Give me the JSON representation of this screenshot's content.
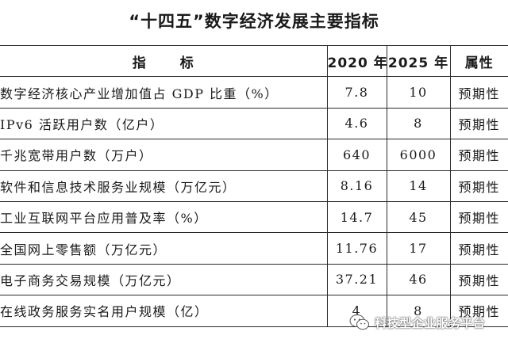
{
  "document": {
    "title": "“十四五”数字经济发展主要指标"
  },
  "table": {
    "headers": {
      "indicator_a": "指",
      "indicator_b": "标",
      "y2020": "2020 年",
      "y2025": "2025 年",
      "attribute": "属性"
    },
    "rows": [
      {
        "name": "数字经济核心产业增加值占 GDP 比重（%）",
        "v2020": "7.8",
        "v2025": "10",
        "attr": "预期性"
      },
      {
        "name": "IPv6 活跃用户数（亿户）",
        "v2020": "4.6",
        "v2025": "8",
        "attr": "预期性"
      },
      {
        "name": "千兆宽带用户数（万户）",
        "v2020": "640",
        "v2025": "6000",
        "attr": "预期性"
      },
      {
        "name": "软件和信息技术服务业规模（万亿元）",
        "v2020": "8.16",
        "v2025": "14",
        "attr": "预期性"
      },
      {
        "name": "工业互联网平台应用普及率（%）",
        "v2020": "14.7",
        "v2025": "45",
        "attr": "预期性"
      },
      {
        "name": "全国网上零售额（万亿元）",
        "v2020": "11.76",
        "v2025": "17",
        "attr": "预期性"
      },
      {
        "name": "电子商务交易规模（万亿元）",
        "v2020": "37.21",
        "v2025": "46",
        "attr": "预期性"
      },
      {
        "name": "在线政务服务实名用户规模（亿）",
        "v2020": "4",
        "v2025": "8",
        "attr": "预期性"
      }
    ]
  },
  "watermark": {
    "text": "科技型企业服务平台",
    "icon": "wechat-logo-icon"
  }
}
